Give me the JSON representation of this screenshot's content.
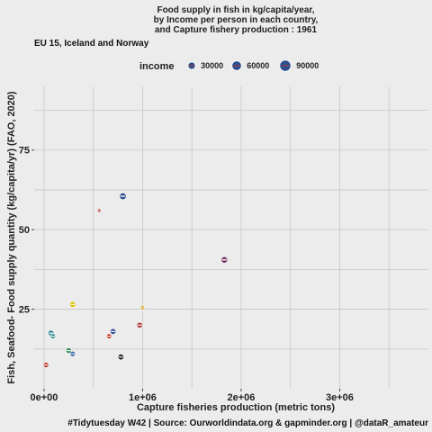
{
  "chart_data": {
    "type": "scatter",
    "title_lines": [
      "Food supply in fish in kg/capita/year,",
      "by Income per person in each country,",
      "and Capture fishery production : 1961"
    ],
    "subtitle": "EU 15, Iceland and Norway",
    "xlabel": "Capture fisheries production (metric tons)",
    "ylabel": "Fish, Seafood- Food supply quantity (kg/capita/yr) (FAO, 2020)",
    "caption": "#Tidytuesday W42 | Source: Ourworldindata.org & gapminder.org | @dataR_amateur",
    "xlim": [
      -100000,
      3900000
    ],
    "ylim": [
      0,
      95
    ],
    "x_ticks": [
      {
        "value": 0,
        "label": "0e+00"
      },
      {
        "value": 1000000,
        "label": "1e+06"
      },
      {
        "value": 2000000,
        "label": "2e+06"
      },
      {
        "value": 3000000,
        "label": "3e+06"
      }
    ],
    "y_ticks": [
      {
        "value": 25,
        "label": "25"
      },
      {
        "value": 50,
        "label": "50"
      },
      {
        "value": 75,
        "label": "75"
      }
    ],
    "grid": true,
    "legend": {
      "title": "income",
      "placement": "top",
      "items": [
        {
          "label": "30000",
          "size": 30000
        },
        {
          "label": "60000",
          "size": 60000
        },
        {
          "label": "90000",
          "size": 90000
        }
      ]
    },
    "points": [
      {
        "x": 800000,
        "y": 60.5,
        "income": 25000,
        "color": "#2b4f8f"
      },
      {
        "x": 560000,
        "y": 56,
        "income": 3000,
        "color": "#c0392b"
      },
      {
        "x": 1830000,
        "y": 40.5,
        "income": 22000,
        "color": "#7a3a6a"
      },
      {
        "x": 290000,
        "y": 26.5,
        "income": 18000,
        "color": "#d9c300"
      },
      {
        "x": 1000000,
        "y": 25.5,
        "income": 6000,
        "color": "#d4a017"
      },
      {
        "x": 970000,
        "y": 20,
        "income": 14000,
        "color": "#b03030"
      },
      {
        "x": 700000,
        "y": 18,
        "income": 16000,
        "color": "#3a4a9a"
      },
      {
        "x": 660000,
        "y": 16.5,
        "income": 10000,
        "color": "#c0392b"
      },
      {
        "x": 70000,
        "y": 17.5,
        "income": 16000,
        "color": "#1f7a8c"
      },
      {
        "x": 90000,
        "y": 16.5,
        "income": 10000,
        "color": "#2f8f8f"
      },
      {
        "x": 250000,
        "y": 12,
        "income": 14000,
        "color": "#2e8b57"
      },
      {
        "x": 290000,
        "y": 11,
        "income": 12000,
        "color": "#3366aa"
      },
      {
        "x": 780000,
        "y": 10,
        "income": 16000,
        "color": "#222222"
      },
      {
        "x": 20000,
        "y": 7.5,
        "income": 12000,
        "color": "#c0392b"
      }
    ]
  }
}
